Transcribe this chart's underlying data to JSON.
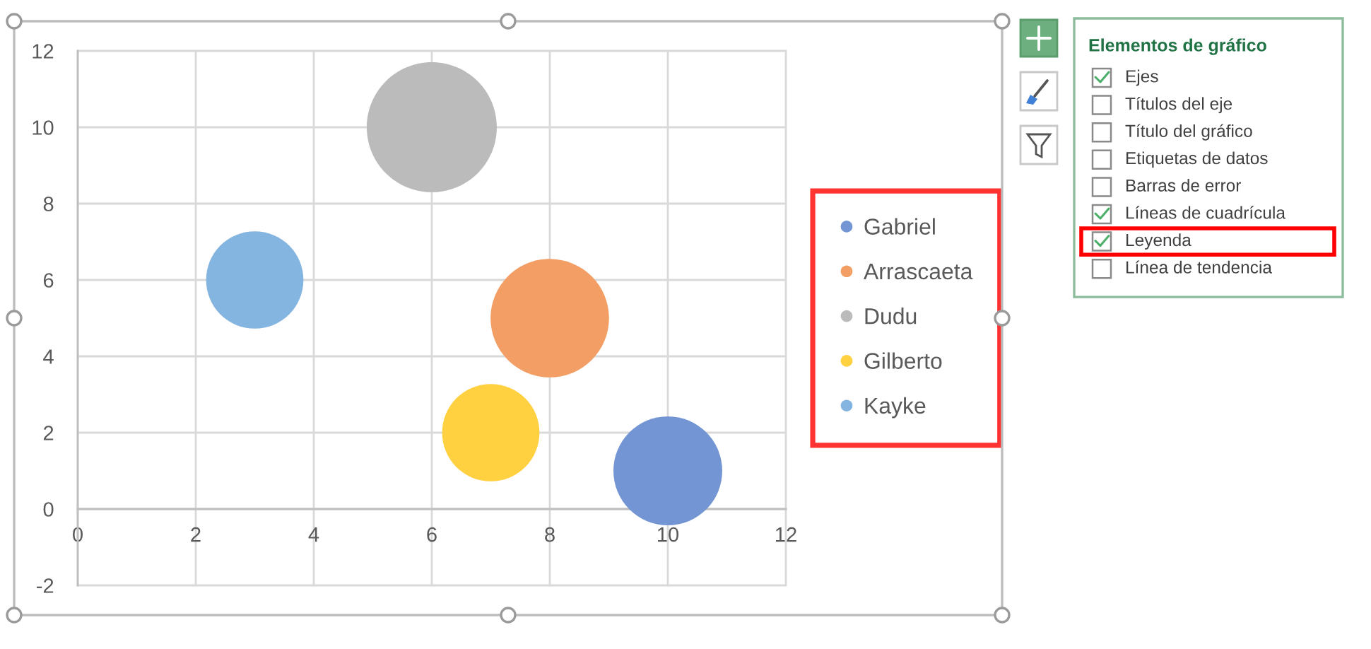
{
  "chart_data": {
    "type": "bubble",
    "series": [
      {
        "name": "Gabriel",
        "color": "#7395d3",
        "x": [
          10
        ],
        "values": [
          1
        ],
        "sizes": [
          0.7
        ]
      },
      {
        "name": "Arrascaeta",
        "color": "#f29e64",
        "x": [
          8
        ],
        "values": [
          5
        ],
        "sizes": [
          0.83
        ]
      },
      {
        "name": "Dudu",
        "color": "#bbbbbb",
        "x": [
          6
        ],
        "values": [
          10
        ],
        "sizes": [
          1
        ]
      },
      {
        "name": "Gilberto",
        "color": "#ffd040",
        "x": [
          7
        ],
        "values": [
          2
        ],
        "sizes": [
          0.56
        ]
      },
      {
        "name": "Kayke",
        "color": "#84b4e0",
        "x": [
          3
        ],
        "values": [
          6
        ],
        "sizes": [
          0.56
        ]
      }
    ],
    "xlim": [
      0,
      12
    ],
    "ylim": [
      -2,
      12
    ],
    "xticks": [
      0,
      2,
      4,
      6,
      8,
      10,
      12
    ],
    "yticks": [
      -2,
      0,
      2,
      4,
      6,
      8,
      10,
      12
    ],
    "grid": true,
    "legend": "right",
    "annotations": [
      "Elementos de gráfico",
      "Ejes",
      "Títulos del eje",
      "Título del gráfico",
      "Etiquetas de datos",
      "Barras de error",
      "Líneas de cuadrícula",
      "Leyenda",
      "Línea de tendencia"
    ]
  }
}
